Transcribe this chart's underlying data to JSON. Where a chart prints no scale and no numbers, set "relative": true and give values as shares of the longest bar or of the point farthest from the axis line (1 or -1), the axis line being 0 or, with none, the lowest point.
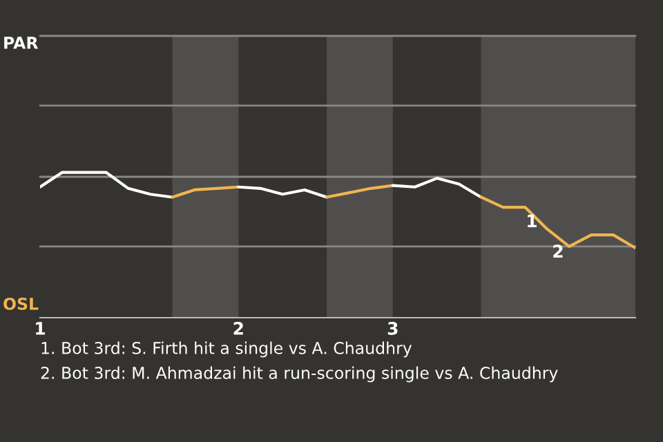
{
  "chart_data": {
    "type": "line",
    "relative": true,
    "categories": [
      "1",
      null,
      null,
      null,
      null,
      null,
      null,
      null,
      null,
      "2",
      null,
      null,
      null,
      null,
      null,
      null,
      "3",
      null,
      null,
      null,
      null,
      null,
      null,
      null,
      null,
      null,
      null,
      null
    ],
    "series": [
      {
        "color": "#ffffff",
        "values": [
          0.9,
          1.0,
          1.0,
          1.0,
          0.89,
          0.85,
          0.83,
          null,
          null,
          null,
          null,
          null,
          null,
          null,
          null,
          null,
          null,
          null,
          null,
          null,
          null,
          null,
          null,
          null,
          null,
          null,
          null,
          null
        ]
      },
      {
        "color": "#f0b450",
        "values": [
          null,
          null,
          null,
          null,
          null,
          null,
          0.83,
          0.88,
          0.89,
          0.9,
          null,
          null,
          null,
          null,
          null,
          null,
          null,
          null,
          null,
          null,
          null,
          null,
          null,
          null,
          null,
          null,
          null,
          null
        ]
      },
      {
        "color": "#ffffff",
        "values": [
          null,
          null,
          null,
          null,
          null,
          null,
          null,
          null,
          null,
          0.9,
          0.89,
          0.85,
          0.88,
          0.83,
          null,
          null,
          null,
          null,
          null,
          null,
          null,
          null,
          null,
          null,
          null,
          null,
          null,
          null
        ]
      },
      {
        "color": "#f0b450",
        "values": [
          null,
          null,
          null,
          null,
          null,
          null,
          null,
          null,
          null,
          null,
          null,
          null,
          null,
          0.83,
          0.86,
          0.89,
          0.91,
          null,
          null,
          null,
          null,
          null,
          null,
          null,
          null,
          null,
          null,
          null
        ]
      },
      {
        "color": "#ffffff",
        "values": [
          null,
          null,
          null,
          null,
          null,
          null,
          null,
          null,
          null,
          null,
          null,
          null,
          null,
          null,
          null,
          null,
          0.91,
          0.9,
          0.96,
          0.92,
          0.83,
          null,
          null,
          null,
          null,
          null,
          null,
          null
        ]
      },
      {
        "color": "#f0b450",
        "values": [
          null,
          null,
          null,
          null,
          null,
          null,
          null,
          null,
          null,
          null,
          null,
          null,
          null,
          null,
          null,
          null,
          null,
          null,
          null,
          null,
          0.83,
          0.76,
          0.76,
          0.61,
          0.49,
          0.57,
          0.57,
          0.48
        ]
      }
    ],
    "marker": "none",
    "ref_lines": [
      {
        "axis": "y",
        "value": 0.49,
        "color": "#8a8886"
      },
      {
        "axis": "y",
        "value": 0.97,
        "color": "#8a8886"
      },
      {
        "axis": "y",
        "value": 1.46,
        "color": "#8a8886"
      },
      {
        "axis": "y",
        "value": 1.94,
        "color": "#8a8886"
      }
    ],
    "annotations": [
      "PAR",
      "OSL",
      "1",
      "2",
      "1. Bot 3rd: S. Firth hit a single vs A. Chaudhry",
      "2. Bot 3rd: M. Ahmadzai hit a run-scoring single vs A. Chaudhry"
    ]
  }
}
